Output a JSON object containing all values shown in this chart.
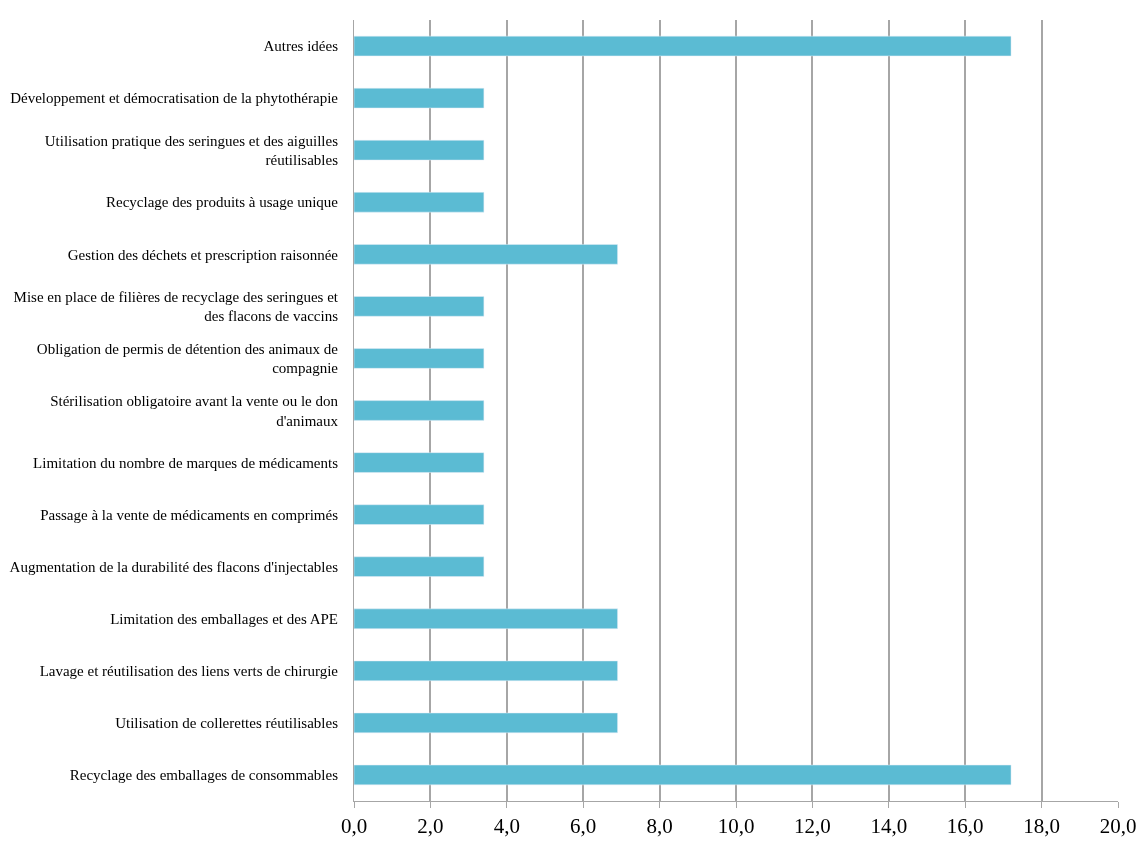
{
  "chart_data": {
    "type": "bar",
    "orientation": "horizontal",
    "categories": [
      "Autres idées",
      "Développement et démocratisation de la phytothérapie",
      "Utilisation pratique des seringues et des aiguilles réutilisables",
      "Recyclage des produits à usage unique",
      "Gestion des déchets et prescription raisonnée",
      "Mise en place de filières de recyclage des seringues et des flacons de vaccins",
      "Obligation de permis de détention des animaux de compagnie",
      "Stérilisation obligatoire avant la vente ou le don d'animaux",
      "Limitation du nombre de marques de médicaments",
      "Passage à la vente de médicaments en comprimés",
      "Augmentation de la durabilité des flacons d'injectables",
      "Limitation des emballages et des APE",
      "Lavage et réutilisation des liens verts de chirurgie",
      "Utilisation de collerettes réutilisables",
      "Recyclage des emballages de consommables"
    ],
    "values": [
      17.2,
      3.4,
      3.4,
      3.4,
      6.9,
      3.4,
      3.4,
      3.4,
      3.4,
      3.4,
      3.4,
      6.9,
      6.9,
      6.9,
      17.2
    ],
    "color": "#5bbbd3",
    "xlim": [
      0,
      20
    ],
    "xticks": [
      {
        "value": 0,
        "label": "0,0"
      },
      {
        "value": 2,
        "label": "2,0"
      },
      {
        "value": 4,
        "label": "4,0"
      },
      {
        "value": 6,
        "label": "6,0"
      },
      {
        "value": 8,
        "label": "8,0"
      },
      {
        "value": 10,
        "label": "10,0"
      },
      {
        "value": 12,
        "label": "12,0"
      },
      {
        "value": 14,
        "label": "14,0"
      },
      {
        "value": 16,
        "label": "16,0"
      },
      {
        "value": 18,
        "label": "18,0"
      },
      {
        "value": 20,
        "label": "20,0"
      }
    ],
    "grid": "x"
  }
}
